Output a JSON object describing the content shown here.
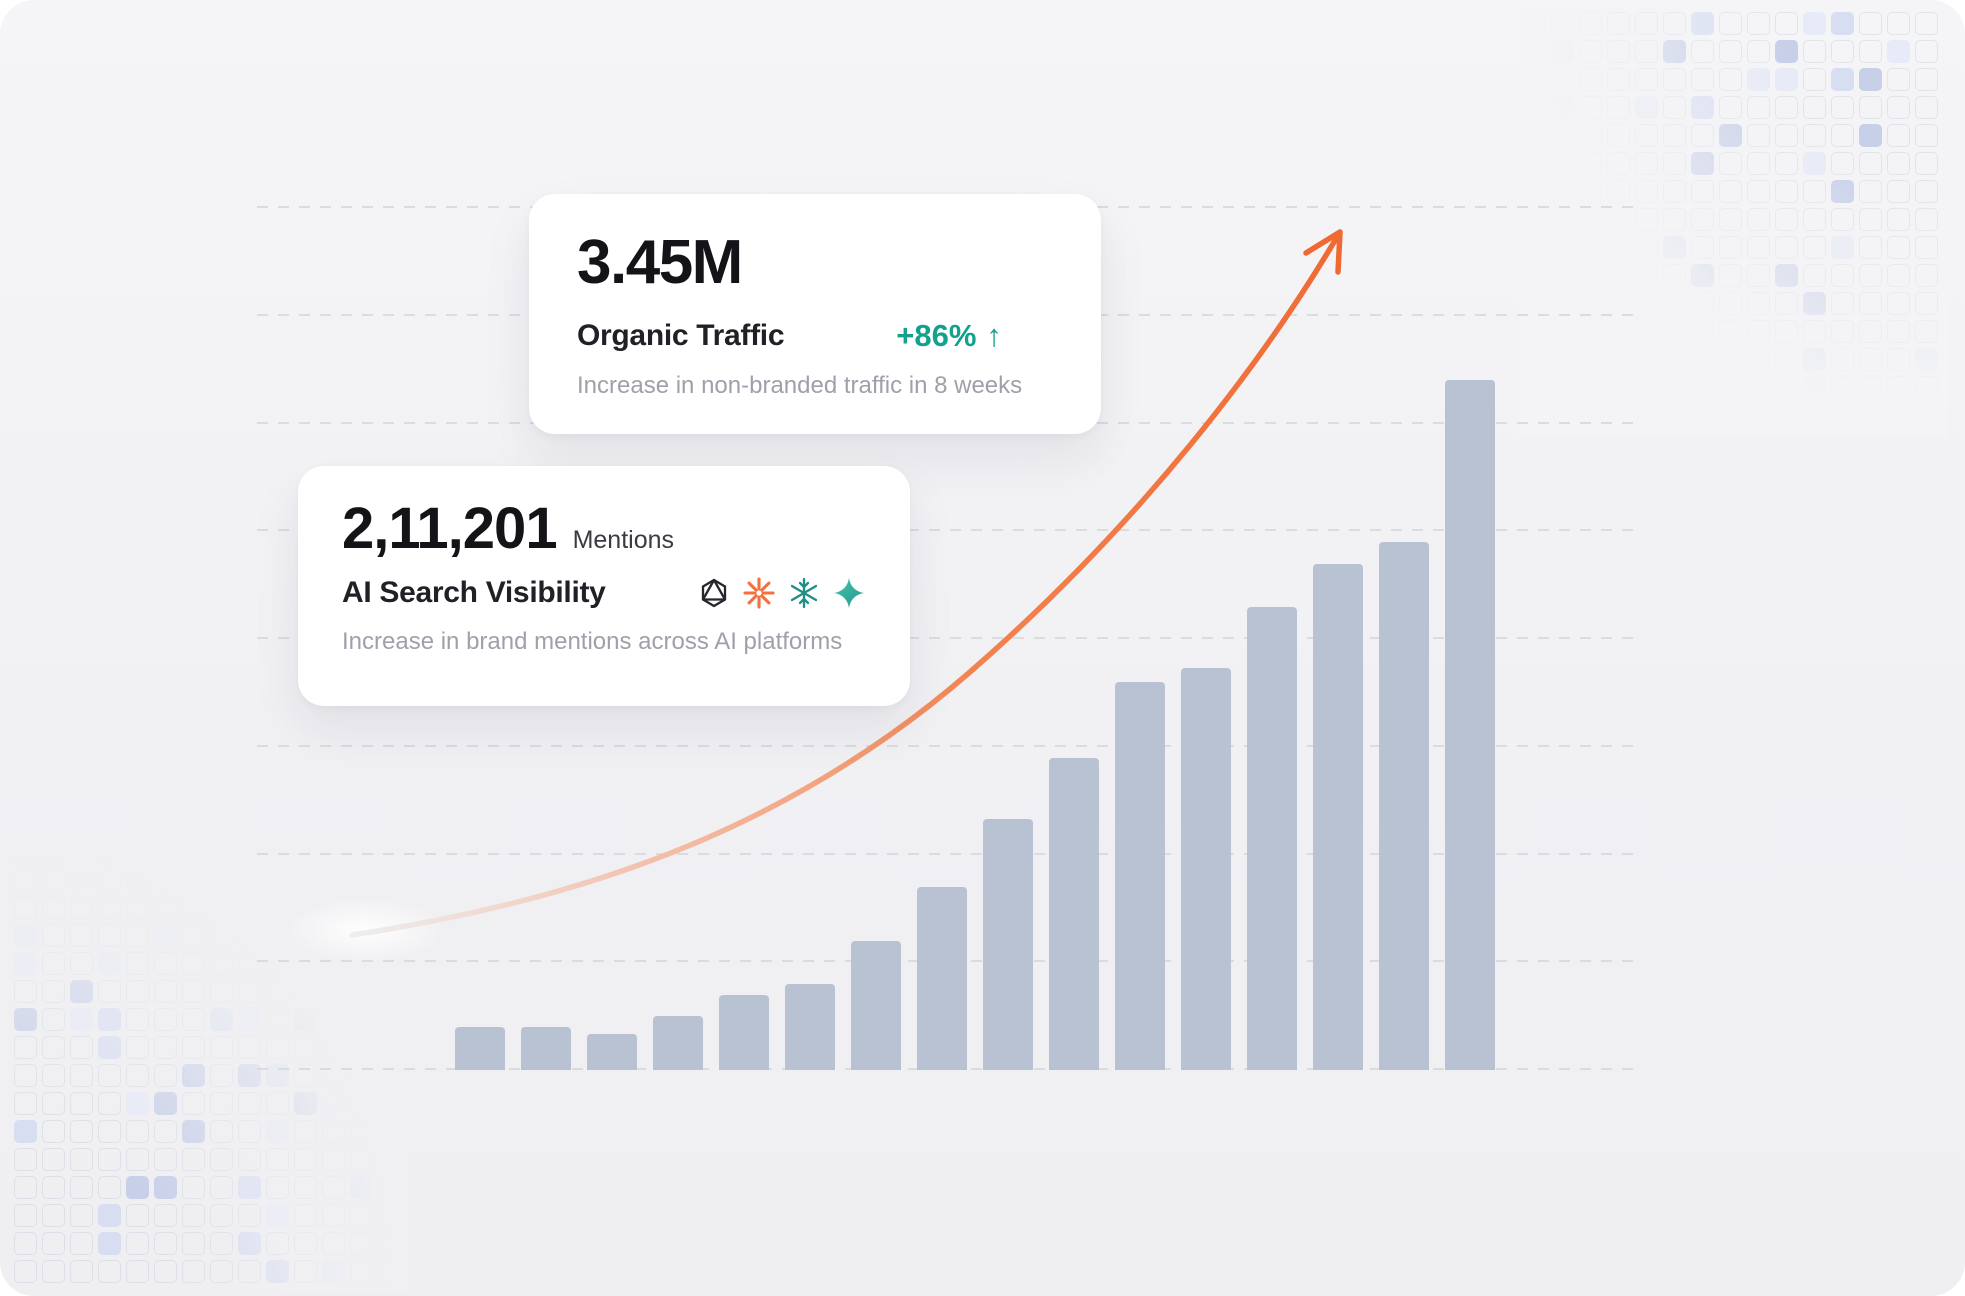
{
  "page": {
    "background": "#f2f2f4"
  },
  "cards": {
    "organic_traffic": {
      "value": "3.45M",
      "label": "Organic Traffic",
      "delta": "+86%",
      "delta_arrow": "↑",
      "delta_color": "#11a18d",
      "description": "Increase in non-branded traffic in 8 weeks"
    },
    "ai_visibility": {
      "value": "2,11,201",
      "unit": "Mentions",
      "label": "AI Search Visibility",
      "description": "Increase in brand mentions across AI platforms",
      "platform_icons": [
        "openai-icon",
        "claude-icon",
        "perplexity-icon",
        "gemini-icon"
      ]
    }
  },
  "colors": {
    "accent_teal": "#11a18d",
    "accent_orange": "#ef6a33",
    "bar_fill": "#b9c2d3",
    "card_bg": "#ffffff",
    "page_bg": "#f2f2f4",
    "text_dark": "#131318",
    "text_muted": "#9fa1aa",
    "pattern_blue": "#c7cfe9",
    "gridline": "#d8d9de"
  },
  "chart_data": {
    "type": "bar",
    "title": "",
    "xlabel": "",
    "ylabel": "",
    "bar_count": 16,
    "values": [
      0.4,
      0.4,
      0.33,
      0.5,
      0.7,
      0.8,
      1.2,
      1.7,
      2.33,
      2.9,
      3.6,
      3.73,
      4.3,
      4.7,
      4.9,
      6.4
    ],
    "value_units": "gridline-intervals (no numeric axis labels shown)",
    "ylim": [
      0,
      8
    ],
    "gridline_count": 9,
    "grid": true,
    "legend": false,
    "bar_color": "#b9c2d3",
    "annotations": [
      {
        "type": "trend-arrow",
        "shape": "exponential-curve-up-right",
        "color": "#ef6a33"
      }
    ]
  }
}
